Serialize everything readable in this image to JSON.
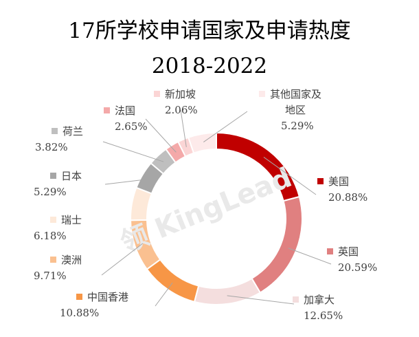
{
  "chart_data": {
    "type": "pie",
    "subtype": "donut",
    "title": "17所学校申请国家及申请热度",
    "subtitle": "2018-2022",
    "watermark": "领 KingLead",
    "categories": [
      "美国",
      "英国",
      "加拿大",
      "中国香港",
      "澳洲",
      "瑞士",
      "日本",
      "荷兰",
      "法国",
      "新加坡",
      "其他国家及地区"
    ],
    "values": [
      20.88,
      20.59,
      12.65,
      10.88,
      9.71,
      6.18,
      5.29,
      3.82,
      2.65,
      2.06,
      5.29
    ],
    "value_labels": [
      "20.88%",
      "20.59%",
      "12.65%",
      "10.88%",
      "9.71%",
      "6.18%",
      "5.29%",
      "3.82%",
      "2.65%",
      "2.06%",
      "5.29%"
    ],
    "colors": [
      "#c00000",
      "#e08080",
      "#f4dede",
      "#f79646",
      "#fac090",
      "#fde9d9",
      "#a6a6a6",
      "#bfbfbf",
      "#f4a9a9",
      "#fbd5d5",
      "#fdeaea"
    ],
    "start_angle_deg": 0,
    "direction": "clockwise",
    "legend_position": "none",
    "data_labels": "category and value beside each slice with leader lines"
  }
}
